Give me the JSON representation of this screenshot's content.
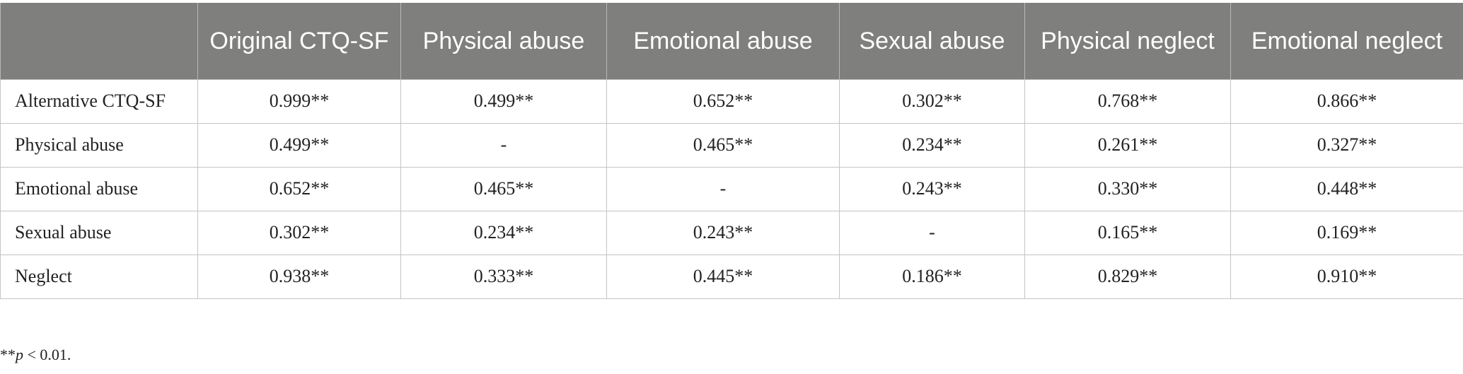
{
  "table": {
    "headers": [
      "",
      "Original CTQ-SF",
      "Physical abuse",
      "Emotional abuse",
      "Sexual abuse",
      "Physical neglect",
      "Emotional neglect"
    ],
    "rows": [
      {
        "label": "Alternative CTQ-SF",
        "cells": [
          "0.999**",
          "0.499**",
          "0.652**",
          "0.302**",
          "0.768**",
          "0.866**"
        ]
      },
      {
        "label": "Physical abuse",
        "cells": [
          "0.499**",
          "-",
          "0.465**",
          "0.234**",
          "0.261**",
          "0.327**"
        ]
      },
      {
        "label": "Emotional abuse",
        "cells": [
          "0.652**",
          "0.465**",
          "-",
          "0.243**",
          "0.330**",
          "0.448**"
        ]
      },
      {
        "label": "Sexual abuse",
        "cells": [
          "0.302**",
          "0.234**",
          "0.243**",
          "-",
          "0.165**",
          "0.169**"
        ]
      },
      {
        "label": "Neglect",
        "cells": [
          "0.938**",
          "0.333**",
          "0.445**",
          "0.186**",
          "0.829**",
          "0.910**"
        ]
      }
    ]
  },
  "footnote": {
    "stars": "**",
    "p": "p",
    "rest": " < 0.01."
  },
  "colors": {
    "header_bg": "#7f7f7e",
    "header_text": "#ffffff",
    "grid": "#c4c4c4"
  }
}
